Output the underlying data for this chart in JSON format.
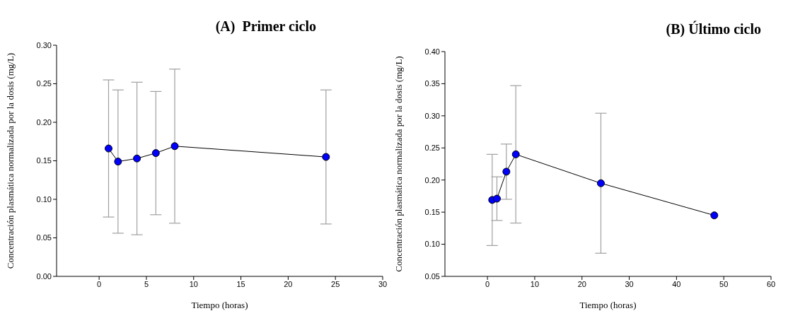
{
  "chart_data": [
    {
      "type": "line",
      "title": "(A)  Primer ciclo",
      "xlabel": "Tiempo (horas)",
      "ylabel": "Concentración plasmática normalizada por la dosis (mg/L)",
      "x": [
        1,
        2,
        4,
        6,
        8,
        24
      ],
      "series": [
        {
          "color": "#0000ff",
          "values": [
            0.166,
            0.149,
            0.153,
            0.16,
            0.169,
            0.155
          ],
          "errors": [
            0.089,
            0.093,
            0.099,
            0.08,
            0.1,
            0.087
          ]
        }
      ],
      "xlim": [
        -4.5,
        30
      ],
      "xticks": [
        0,
        5,
        10,
        15,
        20,
        25,
        30
      ],
      "ylim": [
        0,
        0.3
      ],
      "yticks": [
        {
          "value": 0,
          "label": "0.00"
        },
        {
          "value": 0.05,
          "label": "0.05"
        },
        {
          "value": 0.1,
          "label": "0.10"
        },
        {
          "value": 0.15,
          "label": "0.15"
        },
        {
          "value": 0.2,
          "label": "0.20"
        },
        {
          "value": 0.25,
          "label": "0.25"
        },
        {
          "value": 0.3,
          "label": "0.30"
        }
      ],
      "marker": "circle",
      "line_style": "solid",
      "grid": false
    },
    {
      "type": "line",
      "title": "(B) Último ciclo",
      "xlabel": "Tiempo (horas)",
      "ylabel": "Concentración plasmática normalizada por la dosis (mg/L)",
      "x": [
        1,
        2,
        4,
        6,
        24,
        48
      ],
      "series": [
        {
          "color": "#0000ff",
          "values": [
            0.169,
            0.171,
            0.213,
            0.24,
            0.195,
            0.145
          ],
          "errors": [
            0.071,
            0.034,
            0.043,
            0.107,
            0.109,
            null
          ]
        }
      ],
      "xlim": [
        -9,
        60
      ],
      "xticks": [
        0,
        10,
        20,
        30,
        40,
        50,
        60
      ],
      "ylim": [
        0.05,
        0.4
      ],
      "yticks": [
        {
          "value": 0.05,
          "label": "0.05"
        },
        {
          "value": 0.1,
          "label": "0.10"
        },
        {
          "value": 0.15,
          "label": "0.15"
        },
        {
          "value": 0.2,
          "label": "0.20"
        },
        {
          "value": 0.25,
          "label": "0.25"
        },
        {
          "value": 0.3,
          "label": "0.30"
        },
        {
          "value": 0.35,
          "label": "0.35"
        },
        {
          "value": 0.4,
          "label": "0.40"
        }
      ],
      "marker": "circle",
      "line_style": "solid",
      "grid": false
    }
  ]
}
